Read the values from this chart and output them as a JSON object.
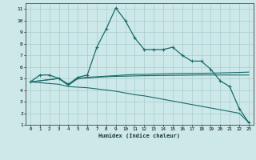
{
  "title": "",
  "xlabel": "Humidex (Indice chaleur)",
  "xlim": [
    -0.5,
    23.5
  ],
  "ylim": [
    1,
    11.5
  ],
  "xticks": [
    0,
    1,
    2,
    3,
    4,
    5,
    6,
    7,
    8,
    9,
    10,
    11,
    12,
    13,
    14,
    15,
    16,
    17,
    18,
    19,
    20,
    21,
    22,
    23
  ],
  "yticks": [
    1,
    2,
    3,
    4,
    5,
    6,
    7,
    8,
    9,
    10,
    11
  ],
  "bg_color": "#cde8e8",
  "grid_color": "#aacece",
  "line_color": "#1a6b6b",
  "line1": {
    "x": [
      0,
      1,
      2,
      3,
      4,
      5,
      6,
      7,
      8,
      9,
      10,
      11,
      12,
      13,
      14,
      15,
      16,
      17,
      18,
      19,
      20,
      21,
      22,
      23
    ],
    "y": [
      4.7,
      5.3,
      5.3,
      5.0,
      4.5,
      5.1,
      5.3,
      7.7,
      9.3,
      11.1,
      10.0,
      8.5,
      7.5,
      7.5,
      7.5,
      7.7,
      7.0,
      6.5,
      6.5,
      5.8,
      4.8,
      4.3,
      2.4,
      1.2
    ]
  },
  "line2": {
    "x": [
      0,
      3,
      4,
      5,
      6,
      7,
      8,
      9,
      10,
      11,
      12,
      13,
      14,
      15,
      16,
      17,
      18,
      19,
      20,
      21,
      22,
      23
    ],
    "y": [
      4.7,
      5.0,
      4.5,
      5.0,
      5.1,
      5.15,
      5.2,
      5.25,
      5.3,
      5.35,
      5.35,
      5.38,
      5.4,
      5.42,
      5.43,
      5.44,
      5.45,
      5.46,
      5.48,
      5.5,
      5.52,
      5.55
    ]
  },
  "line3": {
    "x": [
      0,
      3,
      4,
      5,
      6,
      7,
      8,
      9,
      10,
      11,
      12,
      13,
      14,
      15,
      16,
      17,
      18,
      19,
      20,
      21,
      22,
      23
    ],
    "y": [
      4.7,
      5.0,
      4.4,
      5.0,
      5.05,
      5.1,
      5.15,
      5.18,
      5.2,
      5.22,
      5.24,
      5.25,
      5.26,
      5.27,
      5.28,
      5.29,
      5.3,
      5.3,
      5.3,
      5.3,
      5.3,
      5.3
    ]
  },
  "line4": {
    "x": [
      0,
      3,
      4,
      5,
      6,
      7,
      8,
      9,
      10,
      11,
      12,
      13,
      14,
      15,
      16,
      17,
      18,
      19,
      20,
      21,
      22,
      23
    ],
    "y": [
      4.7,
      4.5,
      4.3,
      4.25,
      4.2,
      4.1,
      4.0,
      3.9,
      3.75,
      3.6,
      3.5,
      3.35,
      3.2,
      3.05,
      2.9,
      2.75,
      2.6,
      2.45,
      2.3,
      2.15,
      2.0,
      1.2
    ]
  }
}
